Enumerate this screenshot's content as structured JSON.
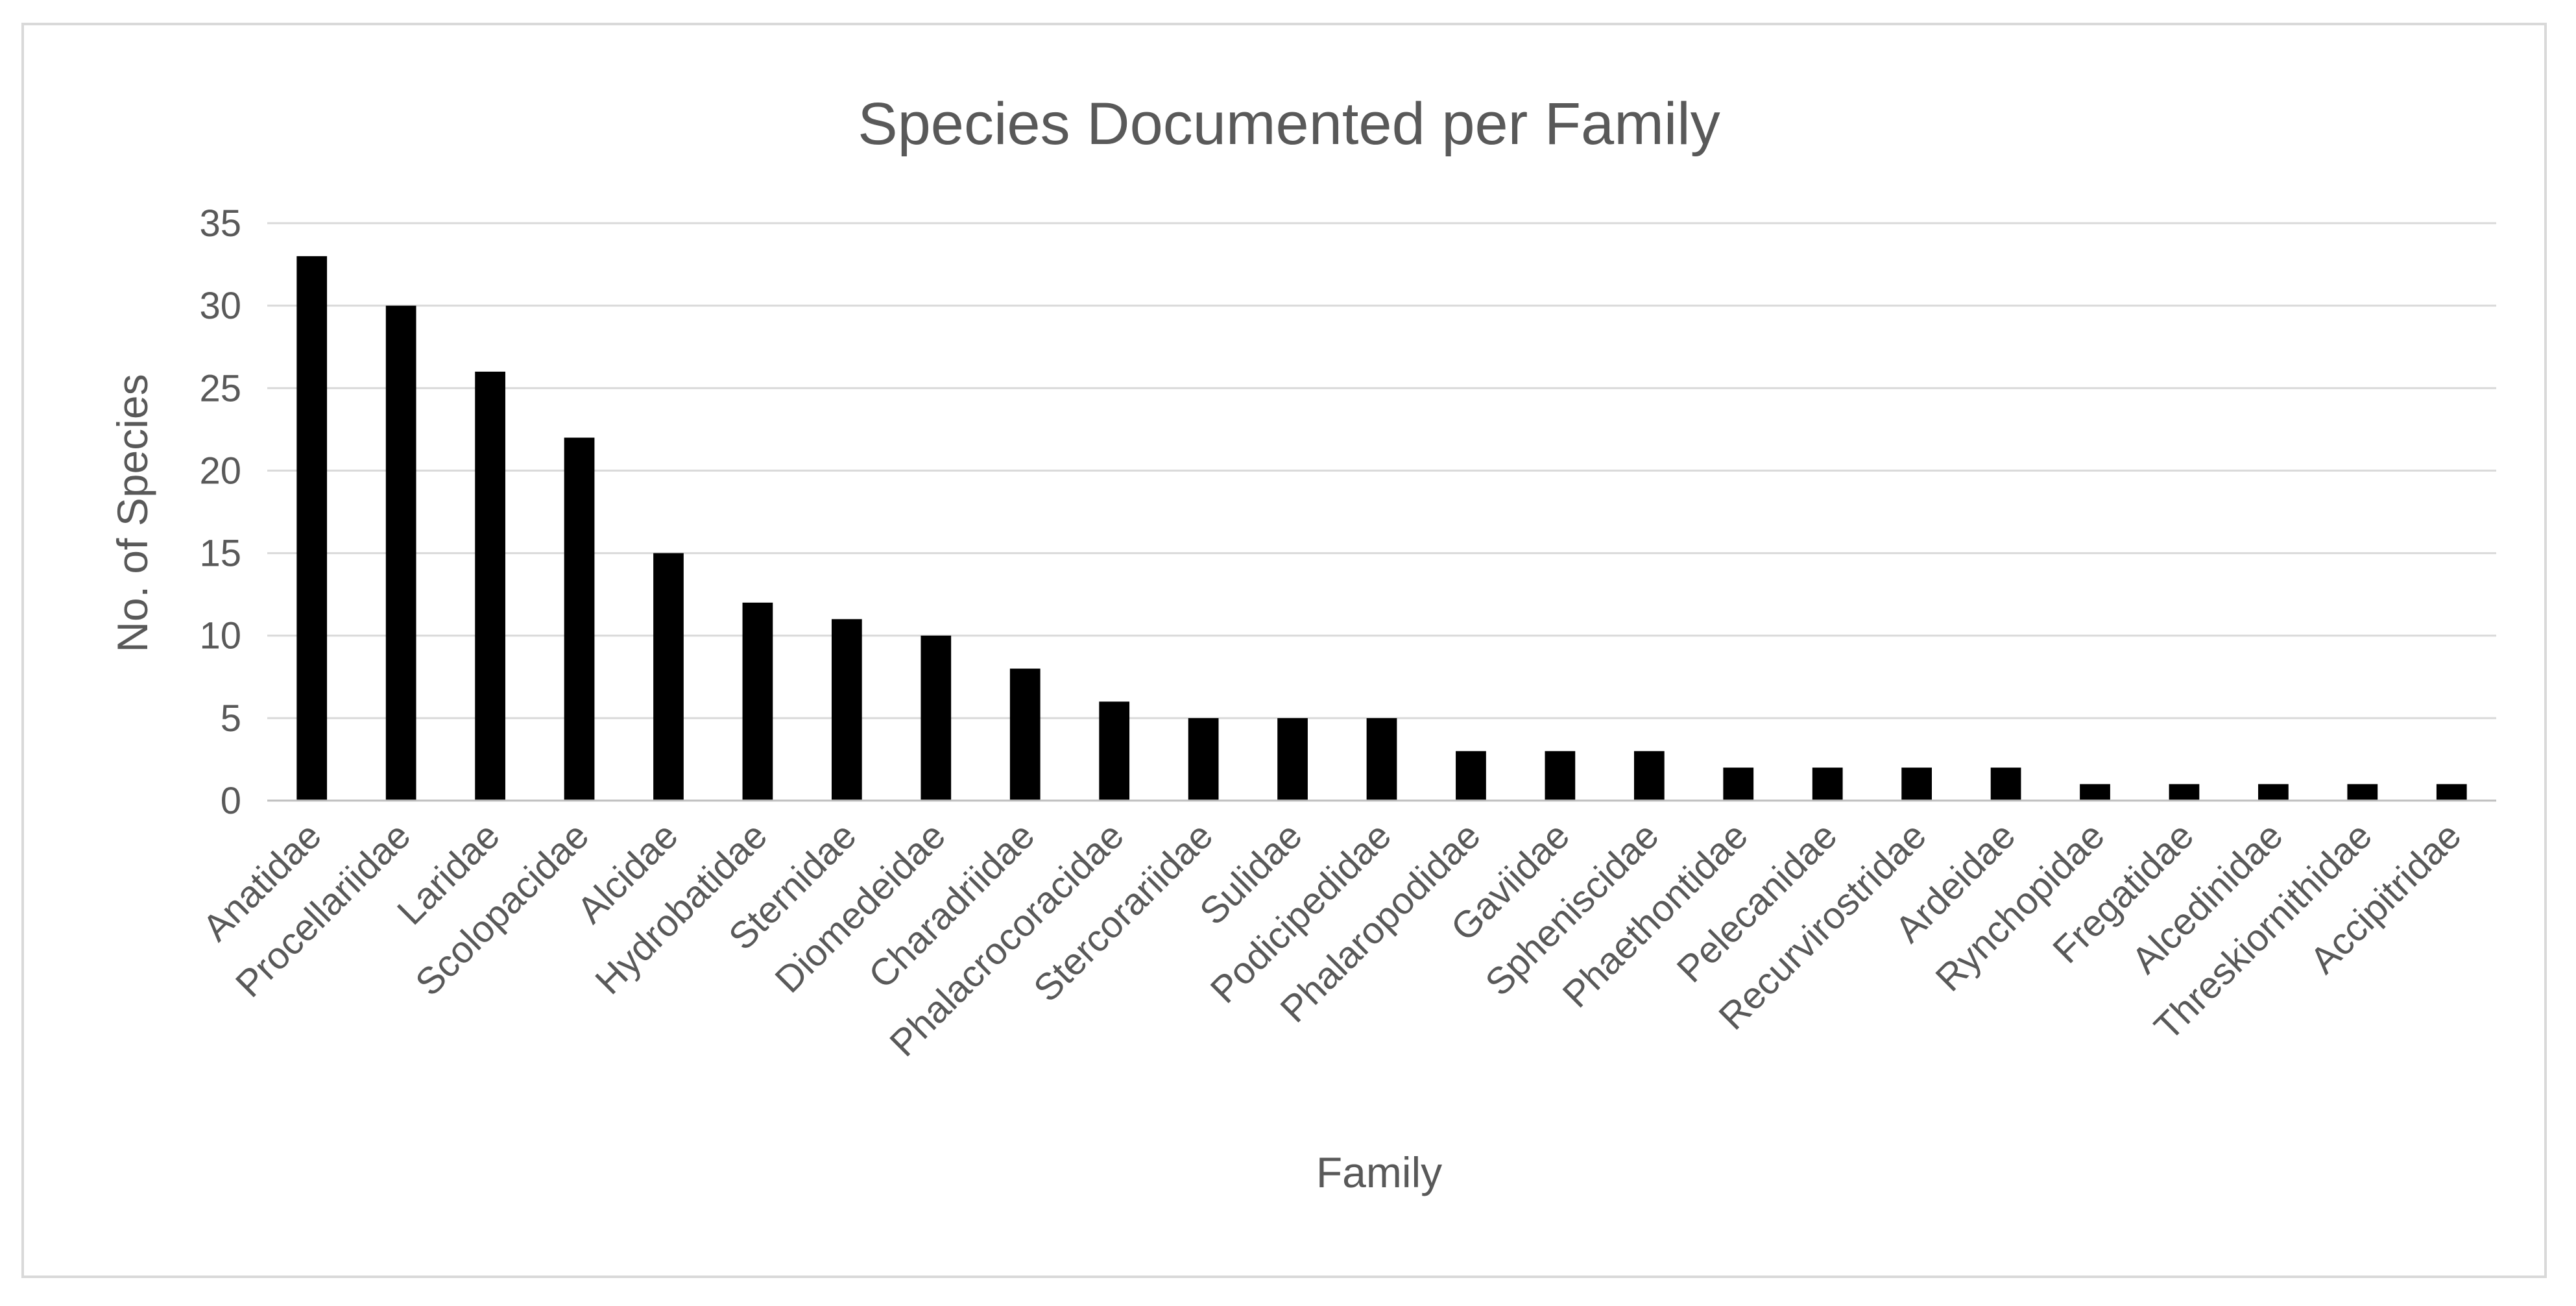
{
  "chart_data": {
    "type": "bar",
    "title": "Species Documented per Family",
    "xlabel": "Family",
    "ylabel": "No. of Species",
    "ylim": [
      0,
      35
    ],
    "yticks": [
      0,
      5,
      10,
      15,
      20,
      25,
      30,
      35
    ],
    "grid": true,
    "legend": "none",
    "bar_color": "#000000",
    "categories": [
      "Anatidae",
      "Procellariidae",
      "Laridae",
      "Scolopacidae",
      "Alcidae",
      "Hydrobatidae",
      "Sternidae",
      "Diomedeidae",
      "Charadriidae",
      "Phalacrocoracidae",
      "Stercorariidae",
      "Sulidae",
      "Podicipedidae",
      "Phalaropodidae",
      "Gaviidae",
      "Spheniscidae",
      "Phaethontidae",
      "Pelecanidae",
      "Recurvirostridae",
      "Ardeidae",
      "Rynchopidae",
      "Fregatidae",
      "Alcedinidae",
      "Threskiornithidae",
      "Accipitridae"
    ],
    "values": [
      33,
      30,
      26,
      22,
      15,
      12,
      11,
      10,
      8,
      6,
      5,
      5,
      5,
      3,
      3,
      3,
      2,
      2,
      2,
      2,
      1,
      1,
      1,
      1,
      1
    ]
  }
}
